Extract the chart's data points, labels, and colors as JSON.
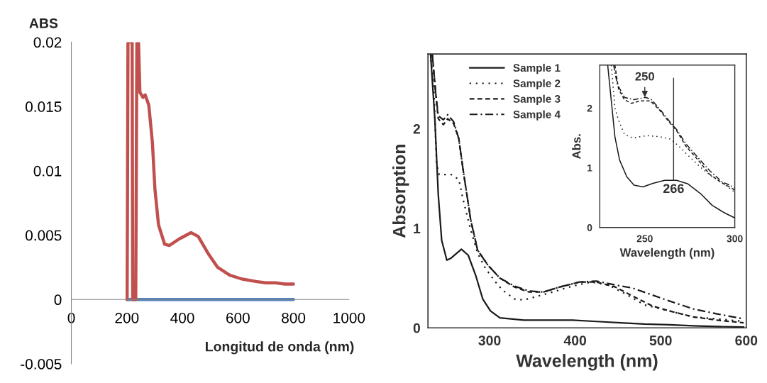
{
  "chart_data": [
    {
      "type": "line",
      "xlabel": "Longitud de onda (nm)",
      "ylabel": "ABS",
      "xlim": [
        0,
        1000
      ],
      "ylim": [
        -0.005,
        0.02
      ],
      "xticks": [
        0,
        200,
        400,
        600,
        800,
        1000
      ],
      "yticks": [
        -0.005,
        0,
        0.005,
        0.01,
        0.015,
        0.02
      ],
      "grid": false,
      "legend": false,
      "series": [
        {
          "color": "#4f81bd",
          "x": [
            200,
            800
          ],
          "values": [
            0,
            0
          ]
        },
        {
          "color": "#c0504d",
          "x": [
            201,
            204,
            219,
            221,
            232,
            236,
            242,
            247,
            258,
            266,
            279,
            292,
            301,
            314,
            336,
            353,
            388,
            431,
            457,
            492,
            527,
            570,
            613,
            665,
            700,
            735,
            770,
            800
          ],
          "values": [
            0,
            0.02,
            0.02,
            0,
            0,
            0.02,
            0.02,
            0.0161,
            0.0157,
            0.0159,
            0.0151,
            0.0122,
            0.0086,
            0.0058,
            0.0043,
            0.0042,
            0.0047,
            0.0052,
            0.0049,
            0.0036,
            0.0025,
            0.0019,
            0.0016,
            0.0014,
            0.0013,
            0.0013,
            0.0012,
            0.0012
          ]
        }
      ]
    },
    {
      "type": "line",
      "xlabel": "Wavelength (nm)",
      "ylabel": "Absorption",
      "xlim": [
        228,
        600
      ],
      "ylim": [
        0,
        2.75
      ],
      "xticks": [
        300,
        400,
        500,
        600
      ],
      "yticks": [
        0,
        1,
        2
      ],
      "grid": false,
      "legend": "top left",
      "series": [
        {
          "name": "Sample 1",
          "color": "#1a1a1a",
          "line_style": "solid",
          "x": [
            231,
            236,
            240,
            244,
            250,
            255,
            267,
            275,
            284,
            292,
            301,
            312,
            340,
            368,
            397,
            425,
            453,
            481,
            510,
            538,
            566,
            597
          ],
          "values": [
            2.75,
            2.1,
            1.34,
            0.88,
            0.68,
            0.7,
            0.79,
            0.73,
            0.52,
            0.29,
            0.17,
            0.1,
            0.077,
            0.077,
            0.077,
            0.064,
            0.051,
            0.038,
            0.031,
            0.02,
            0.013,
            0.008
          ]
        },
        {
          "name": "Sample 2",
          "color": "#1a1a1a",
          "line_style": "dotted",
          "x": [
            231,
            235,
            238,
            241,
            255,
            264,
            269,
            278,
            286,
            295,
            306,
            315,
            329,
            340,
            357,
            374,
            397,
            419,
            439,
            459,
            481,
            510,
            538,
            566,
            597
          ],
          "values": [
            2.75,
            2.36,
            1.65,
            1.54,
            1.54,
            1.49,
            1.29,
            0.98,
            0.75,
            0.6,
            0.47,
            0.38,
            0.29,
            0.28,
            0.32,
            0.36,
            0.42,
            0.46,
            0.43,
            0.34,
            0.23,
            0.17,
            0.11,
            0.09,
            0.064
          ]
        },
        {
          "name": "Sample 3",
          "color": "#1a1a1a",
          "line_style": "dashed",
          "x": [
            233,
            237,
            240,
            246,
            251,
            258,
            264,
            269,
            278,
            286,
            298,
            312,
            329,
            346,
            363,
            382,
            405,
            425,
            447,
            467,
            490,
            510,
            538,
            566,
            597
          ],
          "values": [
            2.75,
            2.36,
            2.1,
            2.04,
            2.1,
            2.05,
            1.9,
            1.59,
            1.08,
            0.78,
            0.63,
            0.5,
            0.41,
            0.36,
            0.36,
            0.41,
            0.46,
            0.46,
            0.41,
            0.32,
            0.22,
            0.17,
            0.11,
            0.077,
            0.051
          ]
        },
        {
          "name": "Sample 4",
          "color": "#1a1a1a",
          "line_style": "dashdot",
          "x": [
            233,
            237,
            240,
            246,
            251,
            258,
            264,
            269,
            278,
            286,
            298,
            312,
            329,
            346,
            363,
            382,
            405,
            425,
            447,
            467,
            490,
            510,
            538,
            566,
            597
          ],
          "values": [
            2.75,
            2.36,
            2.13,
            2.09,
            2.14,
            2.07,
            1.9,
            1.59,
            1.08,
            0.78,
            0.63,
            0.5,
            0.42,
            0.37,
            0.36,
            0.41,
            0.46,
            0.47,
            0.43,
            0.4,
            0.33,
            0.27,
            0.19,
            0.14,
            0.09
          ]
        }
      ]
    },
    {
      "type": "line",
      "xlabel": "Wavelength (nm)",
      "ylabel": "Abs.",
      "xlim": [
        225,
        300
      ],
      "ylim": [
        0,
        2.72
      ],
      "xticks": [
        250,
        300
      ],
      "yticks": [
        0,
        1,
        2
      ],
      "grid": false,
      "legend": false,
      "annotations": [
        {
          "text": "250",
          "x": 250,
          "y": 2.15
        }
      ],
      "ref_lines": [
        {
          "axis": "x",
          "value": 266,
          "label": "266"
        }
      ],
      "series": [
        {
          "color": "#1a1a1a",
          "line_style": "solid",
          "x": [
            229.4,
            231.4,
            233.4,
            236,
            240,
            244,
            249,
            254.5,
            261,
            267.7,
            274,
            280.9,
            287.5,
            294,
            300
          ],
          "values": [
            2.72,
            2.12,
            1.52,
            1.13,
            0.85,
            0.71,
            0.68,
            0.74,
            0.79,
            0.79,
            0.73,
            0.57,
            0.37,
            0.25,
            0.16
          ]
        },
        {
          "color": "#1a1a1a",
          "line_style": "dotted",
          "x": [
            231.4,
            233.4,
            235.4,
            238.7,
            243.3,
            251.2,
            258.4,
            264.4,
            269,
            274.3,
            280.9,
            287.5,
            294,
            300
          ],
          "values": [
            2.72,
            2.0,
            1.8,
            1.56,
            1.5,
            1.54,
            1.52,
            1.48,
            1.36,
            1.2,
            1.01,
            0.85,
            0.73,
            0.59
          ]
        },
        {
          "color": "#1a1a1a",
          "line_style": "dashed",
          "x": [
            233.4,
            235.4,
            238.7,
            242.6,
            247.2,
            253.2,
            258.4,
            263.7,
            267.7,
            272.9,
            279.6,
            286.1,
            292.7,
            300
          ],
          "values": [
            2.72,
            2.32,
            2.14,
            2.08,
            2.12,
            2.12,
            1.96,
            1.76,
            1.62,
            1.36,
            1.13,
            0.89,
            0.75,
            0.63
          ]
        },
        {
          "color": "#1a1a1a",
          "line_style": "dashdot",
          "x": [
            232.7,
            234.7,
            238.7,
            243.9,
            250.5,
            253.8,
            258.4,
            263.7,
            267.7,
            272.9,
            279.6,
            286.1,
            292.7,
            300
          ],
          "values": [
            2.72,
            2.4,
            2.18,
            2.14,
            2.18,
            2.14,
            1.98,
            1.78,
            1.64,
            1.4,
            1.17,
            0.95,
            0.77,
            0.67
          ]
        }
      ]
    }
  ]
}
